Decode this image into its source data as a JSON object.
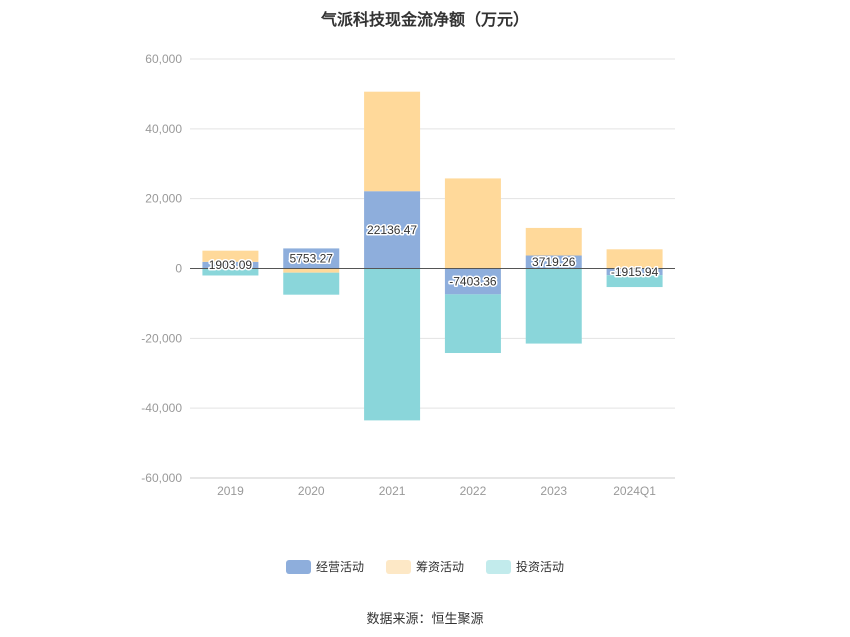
{
  "colors": {
    "operating": "#8eaedc",
    "financing": "#ffd99a",
    "investing": "#8ad6da",
    "legend_financing": "#fde8c6",
    "legend_investing": "#c2ebec"
  },
  "chart_data": {
    "type": "bar",
    "stacked": true,
    "title": "气派科技现金流净额（万元）",
    "xlabel": "",
    "ylabel": "",
    "categories": [
      "2019",
      "2020",
      "2021",
      "2022",
      "2023",
      "2024Q1"
    ],
    "ylim": [
      -60000,
      60000
    ],
    "yticks": [
      60000,
      40000,
      20000,
      0,
      -20000,
      -40000,
      -60000
    ],
    "ytick_labels": [
      "60,000",
      "40,000",
      "20,000",
      "0",
      "-20,000",
      "-40,000",
      "-60,000"
    ],
    "grid": true,
    "legend_position": "bottom",
    "series": [
      {
        "name": "经营活动",
        "key": "operating",
        "values": [
          1903.09,
          5753.27,
          22136.47,
          -7403.36,
          3719.26,
          -1915.94
        ],
        "labels": [
          "1903.09",
          "5753.27",
          "22136.47",
          "-7403.36",
          "3719.26",
          "-1915.94"
        ]
      },
      {
        "name": "筹资活动",
        "key": "financing",
        "values": [
          3200,
          -1200,
          28500,
          25800,
          7900,
          5500
        ]
      },
      {
        "name": "投资活动",
        "key": "investing",
        "values": [
          -2000,
          -6300,
          -43500,
          -16800,
          -21500,
          -3400
        ]
      }
    ]
  },
  "source": "数据来源：恒生聚源"
}
